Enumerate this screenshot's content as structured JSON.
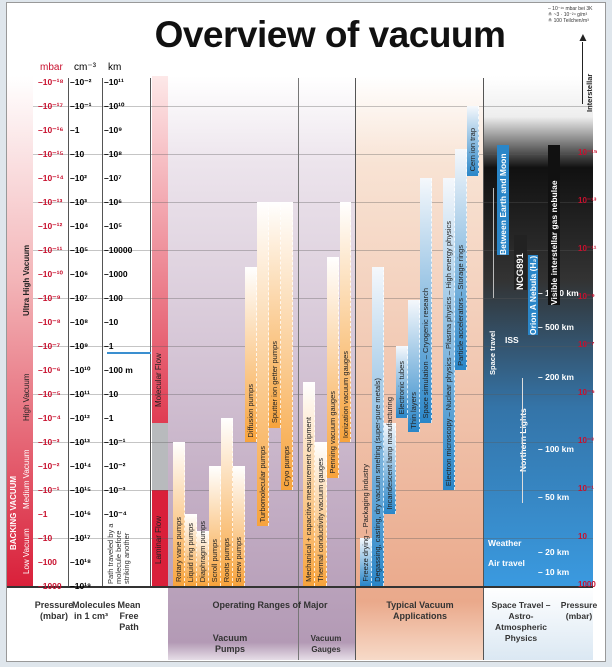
{
  "title": "Overview of vacuum",
  "notes": [
    "– 10⁻¹⁶ mbar bei 3K",
    "≙ ~3 · 10⁻²⁴ g/m³",
    "≙ 100 Teilchen/m³"
  ],
  "interstellar": "Interstellar",
  "headers": {
    "mbar": "mbar",
    "cm": "cm⁻³",
    "km": "km"
  },
  "regions": {
    "backing": "BACKING VACUUM",
    "uhv": "Ultra High Vacuum",
    "hv": "High Vacuum",
    "mv": "Medium Vacuum",
    "lv": "Low Vacuum"
  },
  "flow": {
    "molecular": "Molecular Flow",
    "laminar": "Laminar Flow"
  },
  "pressure_exponents": [
    -18,
    -17,
    -16,
    -15,
    -14,
    -13,
    -12,
    -11,
    -10,
    -9,
    -8,
    -7,
    -6,
    -5,
    -4,
    -3,
    -2,
    -1,
    0,
    1,
    2,
    3
  ],
  "mbar_labels": [
    "10⁻¹⁸",
    "10⁻¹⁷",
    "10⁻¹⁶",
    "10⁻¹⁵",
    "10⁻¹⁴",
    "10⁻¹³",
    "10⁻¹²",
    "10⁻¹¹",
    "10⁻¹⁰",
    "10⁻⁹",
    "10⁻⁸",
    "10⁻⁷",
    "10⁻⁶",
    "10⁻⁵",
    "10⁻⁴",
    "10⁻³",
    "10⁻²",
    "10⁻¹",
    "1",
    "10",
    "100",
    "1000"
  ],
  "molecule_labels": [
    "10⁻²",
    "10⁻¹",
    "1",
    "10",
    "10²",
    "10³",
    "10⁴",
    "10⁵",
    "10⁶",
    "10⁷",
    "10⁸",
    "10⁹",
    "10¹⁰",
    "10¹¹",
    "10¹²",
    "10¹³",
    "10¹⁴",
    "10¹⁵",
    "10¹⁶",
    "10¹⁷",
    "10¹⁸",
    "10¹⁹"
  ],
  "mfp_labels": [
    "10¹¹",
    "10¹⁰",
    "10⁹",
    "10⁸",
    "10⁷",
    "10⁶",
    "10⁵",
    "10000",
    "1000",
    "100",
    "10",
    "1",
    "100 m",
    "10",
    "1",
    "10⁻¹",
    "10⁻²",
    "10⁻³",
    "10⁻⁴"
  ],
  "mfp_note": "Path traveled by a molecule before striking another",
  "pumps": [
    {
      "name": "Rotary vane pumps",
      "from": -3,
      "to": 3
    },
    {
      "name": "Liquid ring pumps",
      "from": 0,
      "to": 3
    },
    {
      "name": "Diaphragm pumps",
      "from": 0.7,
      "to": 3
    },
    {
      "name": "Scroll pumps",
      "from": -2,
      "to": 3
    },
    {
      "name": "Roots pumps",
      "from": -4,
      "to": 3
    },
    {
      "name": "Screw pumps",
      "from": -2,
      "to": 3
    },
    {
      "name": "Diffusion pumps",
      "from": -10.3,
      "to": -3
    },
    {
      "name": "Turbomolecular pumps",
      "from": -13,
      "to": 0.5
    },
    {
      "name": "Sputter ion getter pumps",
      "from": -13,
      "to": -3.6
    },
    {
      "name": "Cryo pumps",
      "from": -13,
      "to": -1
    }
  ],
  "gauges": [
    {
      "name": "Mechanical + capacitive measurement equipment",
      "from": -5.5,
      "to": 3
    },
    {
      "name": "Thermal conductivity vacuum gauges",
      "from": -3,
      "to": 3
    },
    {
      "name": "Penning vacuum gauges",
      "from": -10.7,
      "to": -1.5
    },
    {
      "name": "Ionization vacuum gauges",
      "from": -13,
      "to": -3
    }
  ],
  "applications": [
    {
      "name": "Freeze drying – Packaging industry",
      "from": 1,
      "to": 3
    },
    {
      "name": "Degassing, casting, dry vacuum smelting (super-pure metals)",
      "from": -10.3,
      "to": 3
    },
    {
      "name": "Incandescent lamp manufacturing",
      "from": -3.8,
      "to": 0
    },
    {
      "name": "Electronic tubes",
      "from": -7,
      "to": -4
    },
    {
      "name": "Thin layers",
      "from": -8.9,
      "to": -3.4
    },
    {
      "name": "Space simulation – Cryogenic research",
      "from": -14,
      "to": -3.8
    },
    {
      "name": "Electron microscopy – Nuclear physics – Plasma physics – High energy physics",
      "from": -14,
      "to": -1
    },
    {
      "name": "Particle accelerators – Storage rings",
      "from": -15.2,
      "to": -6
    },
    {
      "name": "Cern ion trap",
      "from": -17,
      "to": -14.1
    }
  ],
  "space": {
    "earth_moon": "Between Earth and Moon",
    "nebulae": "Visible interstellar gas nebulae",
    "ngc": "NCG891",
    "orion": "Orion A Nebula (H₂)",
    "iss": "ISS",
    "space_travel": "Space travel",
    "northern": "Northern Lights",
    "weather": "Weather",
    "air": "Air travel",
    "altitudes": [
      {
        "label": "– 1000 km",
        "p": -9.2
      },
      {
        "label": "– 500 km",
        "p": -7.8
      },
      {
        "label": "– 200 km",
        "p": -5.7
      },
      {
        "label": "– 100 km",
        "p": -2.7
      },
      {
        "label": "– 50 km",
        "p": -0.7
      },
      {
        "label": "– 20 km",
        "p": 1.6
      },
      {
        "label": "– 10 km",
        "p": 2.4
      }
    ],
    "pressure_labels": [
      {
        "label": "10⁻¹⁵",
        "p": -15
      },
      {
        "label": "10⁻¹³",
        "p": -13
      },
      {
        "label": "10⁻¹¹",
        "p": -11
      },
      {
        "label": "10⁻⁹",
        "p": -9
      },
      {
        "label": "10⁻⁷",
        "p": -7
      },
      {
        "label": "10⁻⁵",
        "p": -5
      },
      {
        "label": "10⁻³",
        "p": -3
      },
      {
        "label": "10⁻¹",
        "p": -1
      },
      {
        "label": "10",
        "p": 1
      },
      {
        "label": "1000",
        "p": 3
      }
    ]
  },
  "footer": {
    "pressure": "Pressure (mbar)",
    "molecules": "Molecules in 1 cm³",
    "mfp": "Mean Free Path",
    "operating": "Operating Ranges of Major",
    "vpumps": "Vacuum Pumps",
    "vgauges": "Vacuum Gauges",
    "apps": "Typical Vacuum Applications",
    "space": "Space Travel – Astro-Atmospheric Physics",
    "pressure_r": "Pressure (mbar)"
  },
  "colors": {
    "red": "#c8102e",
    "pump": "#f7a33c",
    "app": "#2a86c8"
  }
}
